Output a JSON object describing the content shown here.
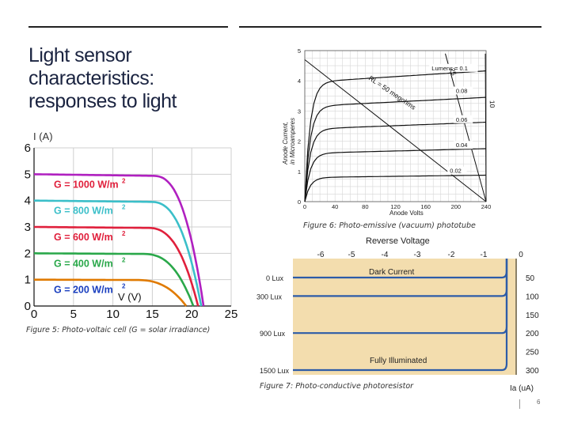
{
  "slide": {
    "title_lines": [
      "Light sensor",
      "characteristics:",
      "responses to light"
    ],
    "page_number": "6"
  },
  "chart_data": [
    {
      "type": "line",
      "name": "photovoltaic",
      "caption": "Figure 5: Photo-voltaic cell (G = solar irradiance)",
      "ylabel": "I (A)",
      "xlabel": "V (V)",
      "xlim": [
        0,
        25
      ],
      "ylim": [
        0,
        6
      ],
      "xticks": [
        "0",
        "5",
        "10",
        "15",
        "20",
        "25"
      ],
      "yticks": [
        "0",
        "1",
        "2",
        "3",
        "4",
        "5",
        "6"
      ],
      "grid": true,
      "series": [
        {
          "name": "G = 1000 W/m",
          "sup": "2",
          "color": "#e0203c",
          "isc": 5.0,
          "voc": 21.5
        },
        {
          "name": "G = 800 W/m",
          "sup": "2",
          "color": "#3bbfc9",
          "isc": 4.0,
          "voc": 21.2
        },
        {
          "name": "G = 600 W/m",
          "sup": "2",
          "color": "#e0203c",
          "isc": 3.0,
          "voc": 20.8
        },
        {
          "name": "G = 400 W/m",
          "sup": "2",
          "color": "#2aa84a",
          "isc": 2.0,
          "voc": 20.2
        },
        {
          "name": "G = 200 W/m",
          "sup": "2",
          "color": "#1a3fbf",
          "isc": 1.0,
          "voc": 19.3
        }
      ],
      "label_colors": [
        "#e0203c",
        "#3bbfc9",
        "#e0203c",
        "#2aa84a",
        "#1a3fbf"
      ],
      "curve_colors": [
        "#b020c0",
        "#3bbfc9",
        "#e0203c",
        "#2aa84a",
        "#e07a00"
      ]
    },
    {
      "type": "line",
      "name": "phototube",
      "caption": "Figure 6: Photo-emissive (vacuum) phototube",
      "ylabel_lines": [
        "Anode Current,",
        "in Microamperes"
      ],
      "xlabel": "Anode Volts",
      "xlim": [
        0,
        240
      ],
      "ylim": [
        0,
        5
      ],
      "xticks": [
        "0",
        "40",
        "80",
        "120",
        "160",
        "200",
        "240"
      ],
      "yticks": [
        "0",
        "1",
        "2",
        "3",
        "4",
        "5"
      ],
      "grid": true,
      "series": [
        {
          "name": "Lumens = 0.1",
          "plateau": 3.95
        },
        {
          "name": "0.08",
          "plateau": 3.15
        },
        {
          "name": "0.06",
          "plateau": 2.4
        },
        {
          "name": "0.04",
          "plateau": 1.6
        },
        {
          "name": "0.02",
          "plateau": 0.8
        }
      ],
      "annotations": [
        "RL = 50 megohms",
        "25",
        "10"
      ]
    },
    {
      "type": "line",
      "name": "photoresistor",
      "caption": "Figure 7: Photo-conductive photoresistor",
      "title": "Reverse Voltage",
      "xticks": [
        "-6",
        "-5",
        "-4",
        "-3",
        "-2",
        "-1",
        "0"
      ],
      "right_ticks": [
        "50",
        "100",
        "150",
        "200",
        "250",
        "300"
      ],
      "right_label": "Ia (uA)",
      "left_labels": [
        "0 Lux",
        "300 Lux",
        "900 Lux",
        "1500 Lux"
      ],
      "band_labels": [
        "Dark Current",
        "Fully Illuminated"
      ],
      "series_values": [
        50,
        100,
        200,
        300
      ]
    }
  ]
}
